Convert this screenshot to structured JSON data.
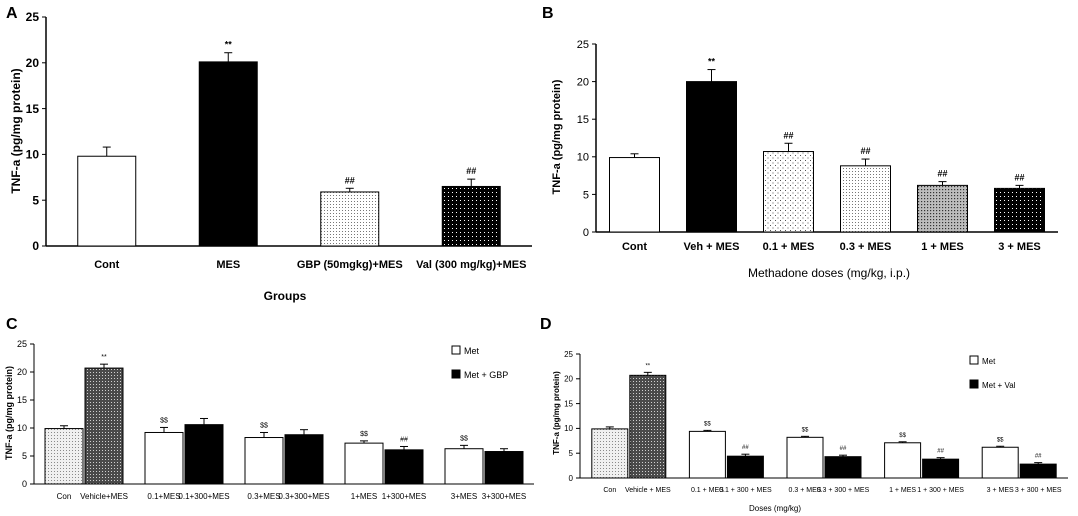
{
  "figure": {
    "panels": [
      {
        "letter": "A",
        "ylabel": "TNF-a (pg/mg protein)",
        "xlabel": "Groups"
      },
      {
        "letter": "B",
        "ylabel": "TNF-a (pg/mg protein)",
        "xlabel": "Methadone doses (mg/kg, i.p.)"
      },
      {
        "letter": "C",
        "ylabel": "TNF-a (pg/mg protein)",
        "xlabel": ""
      },
      {
        "letter": "D",
        "ylabel": "TNF-a (pg/mg protein)",
        "xlabel": "Doses (mg/kg)"
      }
    ]
  },
  "chart_data": [
    {
      "type": "bar",
      "panel": "A",
      "ylabel": "TNF-a (pg/mg protein)",
      "xlabel": "Groups",
      "ylim": [
        0,
        25
      ],
      "yticks": [
        0,
        5,
        10,
        15,
        20,
        25
      ],
      "categories": [
        "Cont",
        "MES",
        "GBP (50mgkg)+MES",
        "Val (300 mg/kg)+MES"
      ],
      "values": [
        9.8,
        20.1,
        5.9,
        6.5
      ],
      "errors": [
        1.0,
        1.0,
        0.4,
        0.8
      ],
      "fills": [
        "white",
        "black",
        "fine-dots",
        "black-dots"
      ],
      "annotations": [
        "",
        "**",
        "##",
        "##"
      ]
    },
    {
      "type": "bar",
      "panel": "B",
      "ylabel": "TNF-a (pg/mg protein)",
      "xlabel": "Methadone doses (mg/kg, i.p.)",
      "ylim": [
        0,
        25
      ],
      "yticks": [
        0,
        5,
        10,
        15,
        20,
        25
      ],
      "categories": [
        "Cont",
        "Veh + MES",
        "0.1 + MES",
        "0.3 + MES",
        "1 + MES",
        "3 + MES"
      ],
      "values": [
        9.9,
        20.0,
        10.7,
        8.8,
        6.2,
        5.8
      ],
      "errors": [
        0.5,
        1.6,
        1.1,
        0.9,
        0.5,
        0.4
      ],
      "fills": [
        "white",
        "black",
        "sparse-dots",
        "fine-dots",
        "grey-dots",
        "black-dots"
      ],
      "annotations": [
        "",
        "**",
        "##",
        "##",
        "##",
        "##"
      ]
    },
    {
      "type": "bar",
      "panel": "C",
      "ylabel": "TNF-a (pg/mg protein)",
      "xlabel": "",
      "ylim": [
        0,
        25
      ],
      "yticks": [
        0,
        5,
        10,
        15,
        20,
        25
      ],
      "categories": [
        "Con",
        "Vehicle+MES",
        "0.1+MES",
        "0.1+300+MES",
        "0.3+MES",
        "0.3+300+MES",
        "1+MES",
        "1+300+MES",
        "3+MES",
        "3+300+MES"
      ],
      "values": [
        9.9,
        20.7,
        9.2,
        10.6,
        8.3,
        8.8,
        7.3,
        6.1,
        6.3,
        5.8
      ],
      "errors": [
        0.5,
        0.7,
        0.9,
        1.1,
        0.9,
        0.9,
        0.4,
        0.6,
        0.6,
        0.5
      ],
      "fills": [
        "light-dots",
        "dark-dots",
        "white",
        "black",
        "white",
        "black",
        "white",
        "black",
        "white",
        "black"
      ],
      "annotations": [
        "",
        "**",
        "$$",
        "",
        "$$",
        "",
        "$$",
        "##",
        "$$",
        ""
      ],
      "legend": [
        "Met",
        "Met + GBP"
      ]
    },
    {
      "type": "bar",
      "panel": "D",
      "ylabel": "TNF-a (pg/mg protein)",
      "xlabel": "Doses (mg/kg)",
      "ylim": [
        0,
        25
      ],
      "yticks": [
        0,
        5,
        10,
        15,
        20,
        25
      ],
      "categories": [
        "Con",
        "Vehicle + MES",
        "0.1 + MES",
        "0.1 + 300 + MES",
        "0.3 + MES",
        "0.3 + 300 + MES",
        "1 + MES",
        "1 + 300 + MES",
        "3 + MES",
        "3 + 300 + MES"
      ],
      "values": [
        9.9,
        20.7,
        9.4,
        4.4,
        8.2,
        4.3,
        7.1,
        3.8,
        6.2,
        2.8
      ],
      "errors": [
        0.4,
        0.6,
        0.2,
        0.4,
        0.2,
        0.3,
        0.2,
        0.3,
        0.2,
        0.3
      ],
      "fills": [
        "light-dots",
        "dark-dots",
        "white",
        "black",
        "white",
        "black",
        "white",
        "black",
        "white",
        "black"
      ],
      "annotations": [
        "",
        "**",
        "$$",
        "##",
        "$$",
        "##",
        "$$",
        "##",
        "$$",
        "##"
      ],
      "legend": [
        "Met",
        "Met + Val"
      ]
    }
  ]
}
